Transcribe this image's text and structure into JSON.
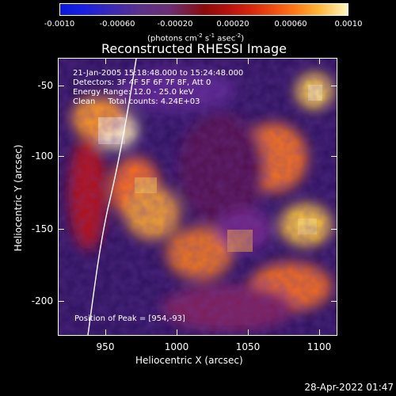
{
  "colorbar": {
    "ticks": [
      "-0.0010",
      "-0.00060",
      "-0.00020",
      "0.00020",
      "0.00060",
      "0.0010"
    ],
    "units": {
      "prefix": "(photons cm",
      "sup1": "-2",
      "mid": " s",
      "sup2": "-1",
      "mid2": " asec",
      "sup3": "-2",
      "suffix": ")"
    }
  },
  "plot": {
    "title": "Reconstructed RHESSI Image",
    "x_label": "Heliocentric X (arcsec)",
    "y_label": "Heliocentric Y (arcsec)",
    "x_ticks": [
      "950",
      "1000",
      "1050",
      "1100"
    ],
    "y_ticks": [
      "-50",
      "-100",
      "-150",
      "-200"
    ],
    "info_lines": [
      "21-Jan-2005 15:18:48.000 to 15:24:48.000",
      "Detectors: 3F 4F 5F 6F 7F 8F, Att 0",
      "Energy Range: 12.0 - 25.0 keV",
      "Clean     Total counts: 4.24E+03"
    ],
    "peak_text": "Position of Peak = [954,-93]"
  },
  "footer": {
    "date": "28-Apr-2022 01:47"
  }
}
